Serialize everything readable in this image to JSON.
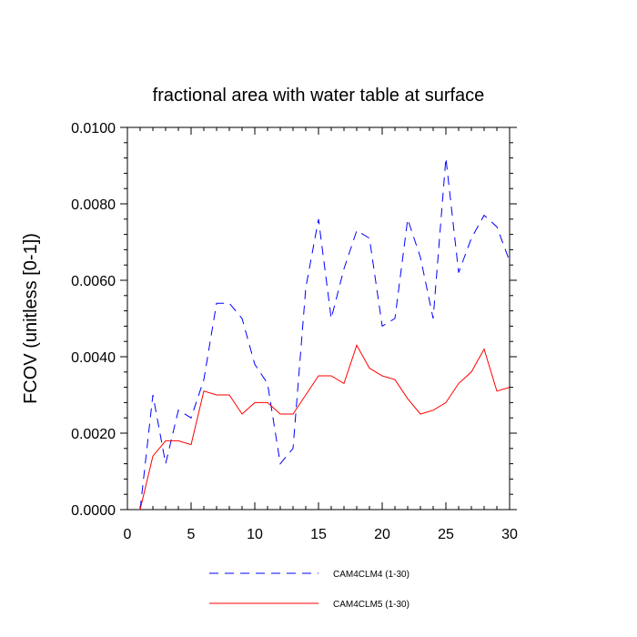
{
  "chart_data": {
    "type": "line",
    "title": "fractional area with water table at surface",
    "xlabel": "",
    "ylabel": "FCOV  (unitless [0-1])",
    "xlim": [
      0,
      30
    ],
    "ylim": [
      0,
      0.01
    ],
    "xticks": [
      0,
      5,
      10,
      15,
      20,
      25,
      30
    ],
    "xtick_labels": [
      "0",
      "5",
      "10",
      "15",
      "20",
      "25",
      "30"
    ],
    "yticks": [
      0,
      0.002,
      0.004,
      0.006,
      0.008,
      0.01
    ],
    "ytick_labels": [
      "0.0000",
      "0.0020",
      "0.0040",
      "0.0060",
      "0.0080",
      "0.0100"
    ],
    "grid": false,
    "legend_position": "bottom",
    "x": [
      1,
      2,
      3,
      4,
      5,
      6,
      7,
      8,
      9,
      10,
      11,
      12,
      13,
      14,
      15,
      16,
      17,
      18,
      19,
      20,
      21,
      22,
      23,
      24,
      25,
      26,
      27,
      28,
      29,
      30
    ],
    "series": [
      {
        "name": "CAM4CLM4 (1-30)",
        "color": "#0000ff",
        "style": "dashed",
        "values": [
          0.0,
          0.003,
          0.0012,
          0.0026,
          0.0024,
          0.0034,
          0.0054,
          0.0054,
          0.005,
          0.0038,
          0.0033,
          0.0012,
          0.0016,
          0.0058,
          0.0076,
          0.005,
          0.0063,
          0.0073,
          0.0071,
          0.0048,
          0.005,
          0.0076,
          0.0066,
          0.005,
          0.0092,
          0.0062,
          0.0071,
          0.0077,
          0.0074,
          0.0065
        ]
      },
      {
        "name": "CAM4CLM5 (1-30)",
        "color": "#ff0000",
        "style": "solid",
        "values": [
          0.0,
          0.0014,
          0.0018,
          0.0018,
          0.0017,
          0.0031,
          0.003,
          0.003,
          0.0025,
          0.0028,
          0.0028,
          0.0025,
          0.0025,
          0.003,
          0.0035,
          0.0035,
          0.0033,
          0.0043,
          0.0037,
          0.0035,
          0.0034,
          0.0029,
          0.0025,
          0.0026,
          0.0028,
          0.0033,
          0.0036,
          0.0042,
          0.0031,
          0.0032
        ]
      }
    ]
  }
}
